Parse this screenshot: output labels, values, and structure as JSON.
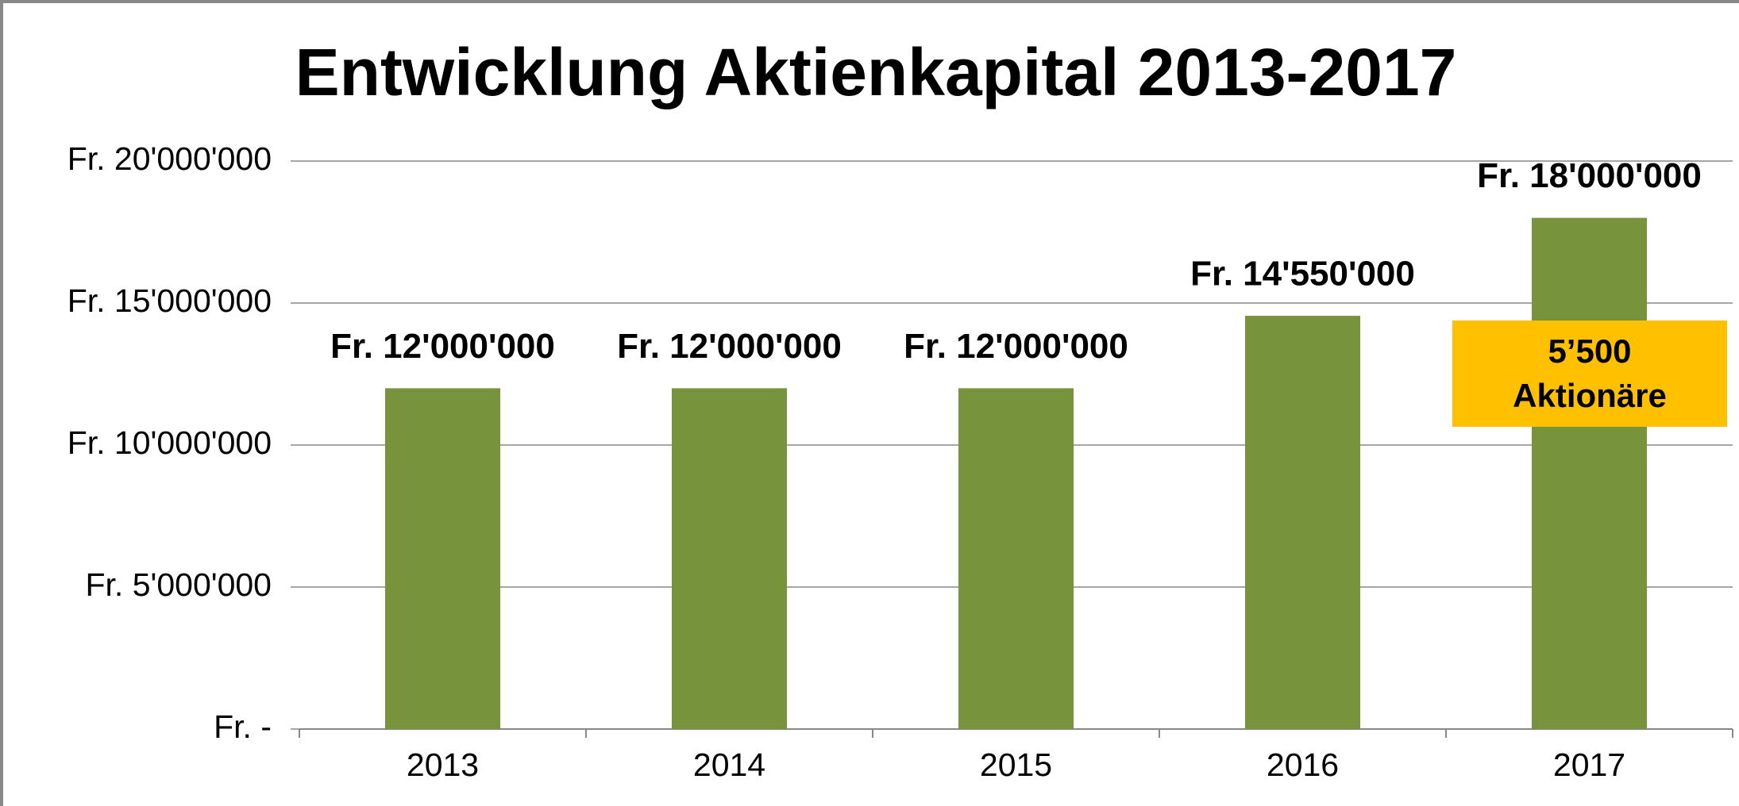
{
  "chart_data": {
    "type": "bar",
    "title": "Entwicklung Aktienkapital 2013-2017",
    "categories": [
      "2013",
      "2014",
      "2015",
      "2016",
      "2017"
    ],
    "values": [
      12000000,
      12000000,
      12000000,
      14550000,
      18000000
    ],
    "value_labels": [
      "Fr. 12'000'000",
      "Fr. 12'000'000",
      "Fr. 12'000'000",
      "Fr. 14'550'000",
      "Fr. 18'000'000"
    ],
    "color": "#77933c",
    "ylim": [
      0,
      20000000
    ],
    "yticks": [
      {
        "value": 0,
        "label": "Fr. -"
      },
      {
        "value": 5000000,
        "label": "Fr. 5'000'000"
      },
      {
        "value": 10000000,
        "label": "Fr. 10'000'000"
      },
      {
        "value": 15000000,
        "label": "Fr. 15'000'000"
      },
      {
        "value": 20000000,
        "label": "Fr. 20'000'000"
      }
    ],
    "grid": true,
    "annotation": {
      "lines": [
        "5’500",
        "Aktionäre"
      ],
      "color": "#ffc000"
    }
  }
}
